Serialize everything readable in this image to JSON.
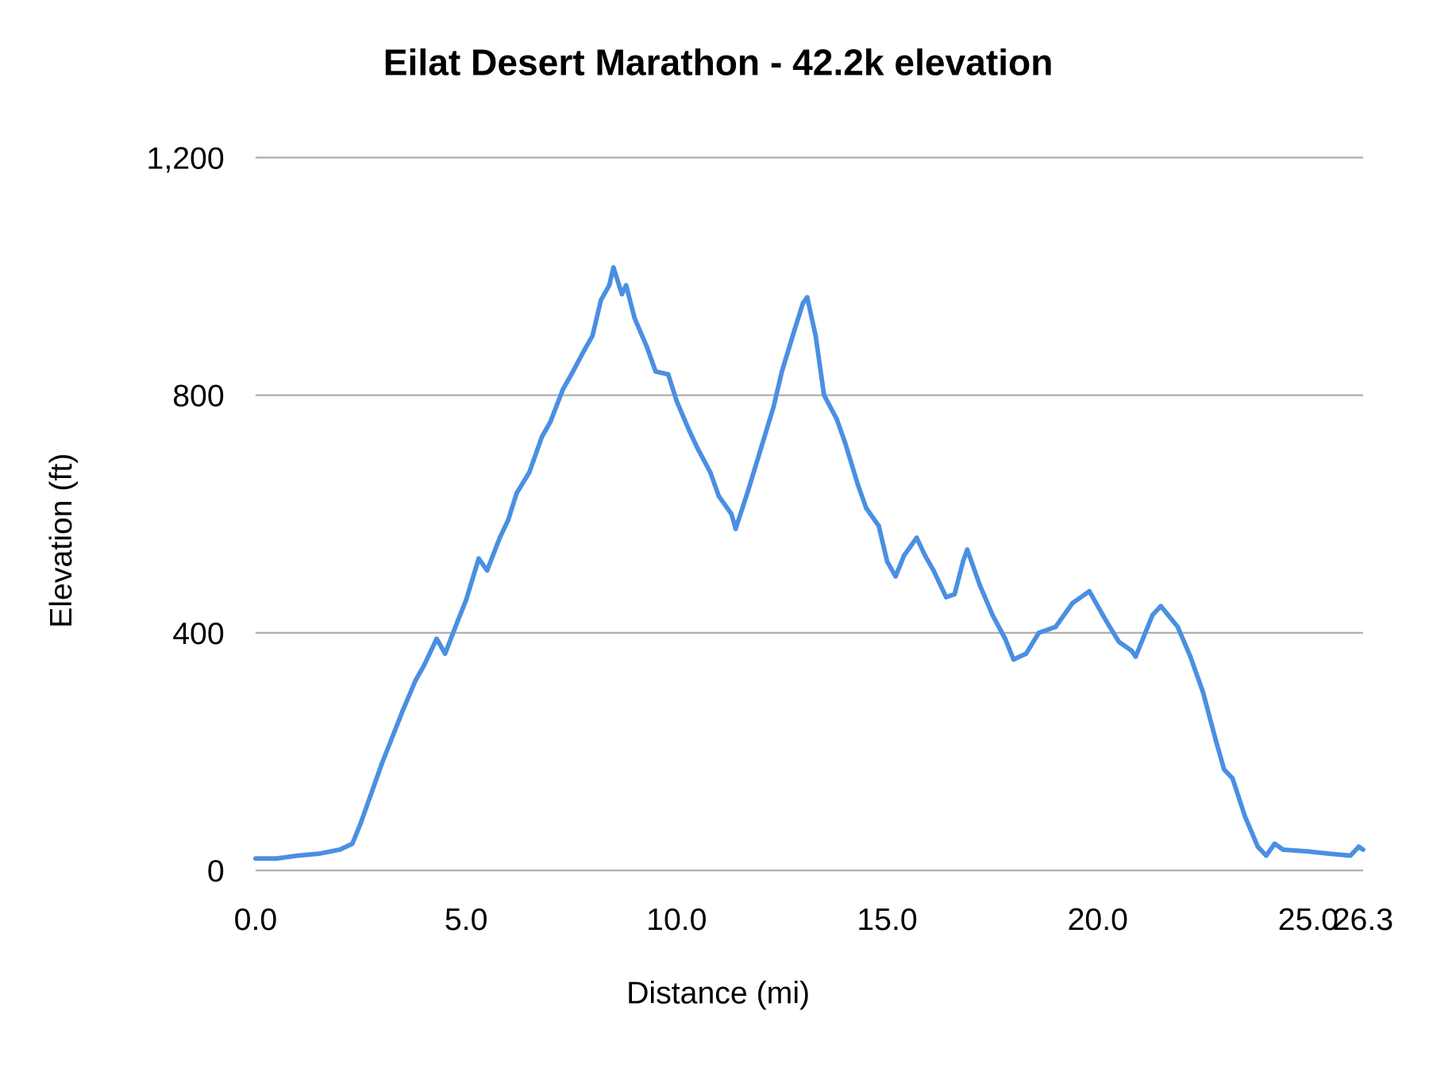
{
  "chart_data": {
    "type": "line",
    "title": "Eilat Desert Marathon - 42.2k elevation",
    "xlabel": "Distance (mi)",
    "ylabel": "Elevation (ft)",
    "xlim": [
      0,
      26.3
    ],
    "ylim": [
      0,
      1200
    ],
    "x_ticks": [
      "0.0",
      "5.0",
      "10.0",
      "15.0",
      "20.0",
      "25.0",
      "26.3"
    ],
    "x_tick_values": [
      0,
      5,
      10,
      15,
      20,
      25,
      26.3
    ],
    "y_ticks": [
      "0",
      "400",
      "800",
      "1,200"
    ],
    "y_tick_values": [
      0,
      400,
      800,
      1200
    ],
    "grid": "horizontal",
    "line_color": "#4a8fe2",
    "grid_color": "#b0b0b0",
    "series": [
      {
        "x": [
          0,
          0.5,
          1,
          1.5,
          2,
          2.3,
          2.5,
          2.8,
          3,
          3.5,
          3.8,
          4,
          4.3,
          4.5,
          4.8,
          5,
          5.3,
          5.5,
          5.8,
          6,
          6.2,
          6.5,
          6.8,
          7,
          7.3,
          7.5,
          7.8,
          8,
          8.2,
          8.4,
          8.5,
          8.7,
          8.8,
          9,
          9.3,
          9.5,
          9.8,
          10,
          10.3,
          10.5,
          10.8,
          11,
          11.3,
          11.4,
          11.7,
          12,
          12.3,
          12.5,
          12.8,
          13,
          13.1,
          13.3,
          13.5,
          13.8,
          14,
          14.3,
          14.5,
          14.8,
          15,
          15.2,
          15.4,
          15.7,
          15.9,
          16.1,
          16.4,
          16.6,
          16.8,
          16.9,
          17.2,
          17.5,
          17.8,
          18,
          18.3,
          18.6,
          19,
          19.4,
          19.8,
          20.2,
          20.5,
          20.8,
          20.9,
          21.3,
          21.5,
          21.9,
          22.2,
          22.5,
          22.8,
          23,
          23.2,
          23.5,
          23.8,
          24,
          24.2,
          24.4,
          25,
          25.5,
          26,
          26.2,
          26.3
        ],
        "y": [
          20,
          20,
          25,
          28,
          35,
          45,
          80,
          140,
          180,
          270,
          320,
          345,
          390,
          365,
          420,
          455,
          525,
          505,
          560,
          590,
          635,
          670,
          730,
          755,
          810,
          835,
          875,
          900,
          960,
          985,
          1015,
          970,
          985,
          930,
          880,
          840,
          835,
          790,
          740,
          710,
          670,
          630,
          600,
          575,
          640,
          710,
          780,
          840,
          910,
          955,
          965,
          900,
          800,
          760,
          720,
          650,
          610,
          580,
          520,
          495,
          530,
          560,
          530,
          505,
          460,
          465,
          520,
          540,
          480,
          430,
          390,
          355,
          365,
          400,
          410,
          450,
          470,
          420,
          385,
          370,
          360,
          430,
          445,
          410,
          360,
          300,
          220,
          170,
          155,
          90,
          40,
          25,
          45,
          35,
          32,
          28,
          25,
          40,
          35
        ]
      }
    ]
  }
}
